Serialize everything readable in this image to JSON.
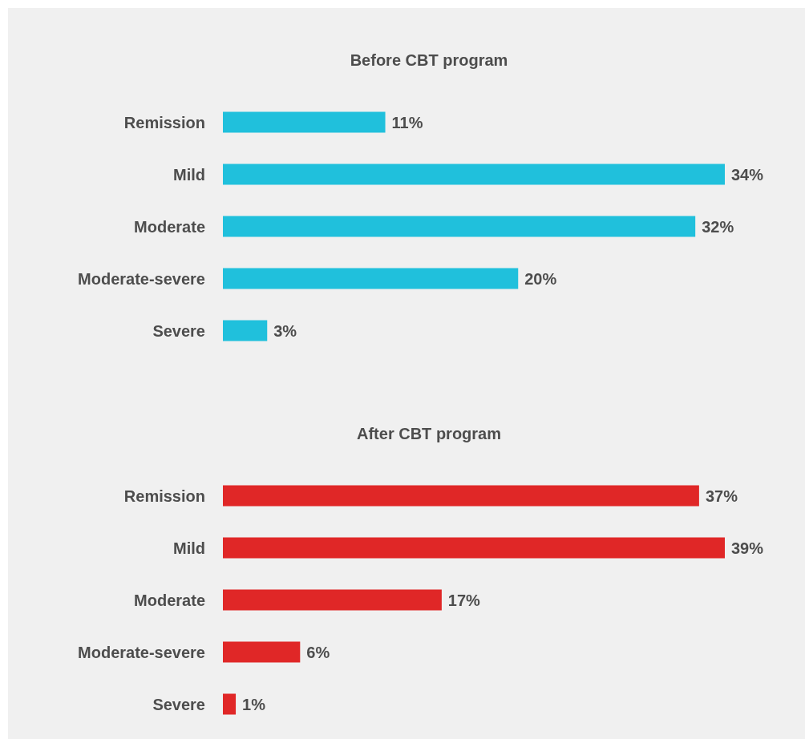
{
  "chart_data": [
    {
      "type": "bar",
      "orientation": "horizontal",
      "title": "Before CBT program",
      "categories": [
        "Remission",
        "Mild",
        "Moderate",
        "Moderate-severe",
        "Severe"
      ],
      "values": [
        11,
        34,
        32,
        20,
        3
      ],
      "color": "#20c0dc",
      "value_labels": [
        "11%",
        "34%",
        "32%",
        "20%",
        "3%"
      ]
    },
    {
      "type": "bar",
      "orientation": "horizontal",
      "title": "After CBT program",
      "categories": [
        "Remission",
        "Mild",
        "Moderate",
        "Moderate-severe",
        "Severe"
      ],
      "values": [
        37,
        39,
        17,
        6,
        1
      ],
      "color": "#e02727",
      "value_labels": [
        "37%",
        "39%",
        "17%",
        "6%",
        "1%"
      ]
    }
  ]
}
